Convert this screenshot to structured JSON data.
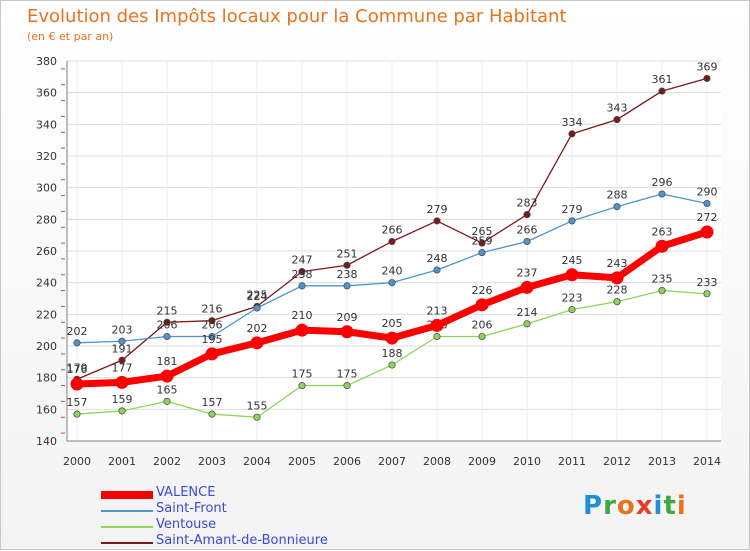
{
  "title": "Evolution des Impôts locaux pour la Commune par Habitant",
  "subtitle": "(en € et par an)",
  "brand": {
    "text": "Proxiti",
    "colors": [
      "#1f8fd6",
      "#3ea83e",
      "#e8731e",
      "#e23f2b",
      "#1f8fd6",
      "#3ea83e",
      "#e8731e"
    ]
  },
  "chart_data": {
    "type": "line",
    "x": [
      2000,
      2001,
      2002,
      2003,
      2004,
      2005,
      2006,
      2007,
      2008,
      2009,
      2010,
      2011,
      2012,
      2013,
      2014
    ],
    "ylim": [
      140,
      380
    ],
    "yticks": [
      140,
      160,
      180,
      200,
      220,
      240,
      260,
      280,
      300,
      320,
      340,
      360,
      380
    ],
    "grid": true,
    "legend": "bottom-left",
    "series": [
      {
        "name": "Saint-Amant-de-Bonnieure",
        "color": "#7a1a1a",
        "values": [
          179,
          191,
          215,
          216,
          225,
          247,
          251,
          266,
          279,
          265,
          283,
          334,
          343,
          361,
          369
        ]
      },
      {
        "name": "Ventouse",
        "color": "#8fd45a",
        "values": [
          157,
          159,
          165,
          157,
          155,
          175,
          175,
          188,
          206,
          206,
          214,
          223,
          228,
          235,
          233
        ]
      },
      {
        "name": "Saint-Front",
        "color": "#4f94cd",
        "values": [
          202,
          203,
          206,
          206,
          224,
          238,
          238,
          240,
          248,
          259,
          266,
          279,
          288,
          296,
          290
        ]
      },
      {
        "name": "VALENCE",
        "color": "#ff0000",
        "values": [
          176,
          177,
          181,
          195,
          202,
          210,
          209,
          205,
          213,
          226,
          237,
          245,
          243,
          263,
          272
        ]
      }
    ],
    "legend_order": [
      "VALENCE",
      "Saint-Front",
      "Ventouse",
      "Saint-Amant-de-Bonnieure"
    ]
  }
}
